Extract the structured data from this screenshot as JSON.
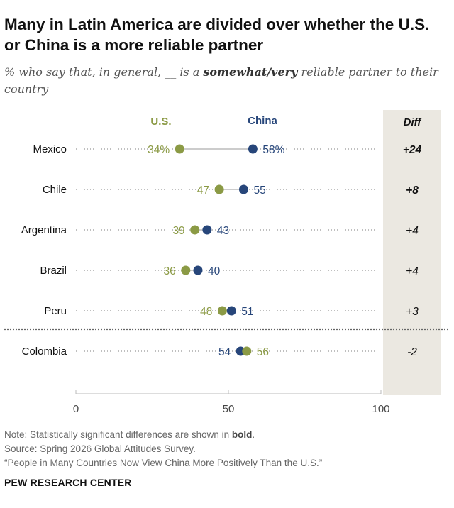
{
  "title": "Many in Latin America are divided over whether the U.S. or China is a more reliable partner",
  "subtitle": {
    "prefix": "% who say that, in general, __ is a ",
    "emphasis": "somewhat/very",
    "suffix": " reliable partner to their country"
  },
  "colors": {
    "us": "#8b9a45",
    "china": "#27467a",
    "diff_bg": "#ebe8e1",
    "dots_line": "#999999"
  },
  "chart_data": {
    "type": "dot",
    "categories": [
      "Mexico",
      "Chile",
      "Argentina",
      "Brazil",
      "Peru",
      "Colombia"
    ],
    "series": [
      {
        "name": "U.S.",
        "values": [
          34,
          47,
          39,
          36,
          48,
          56
        ],
        "labels": [
          "34%",
          "47",
          "39",
          "36",
          "48",
          "56"
        ]
      },
      {
        "name": "China",
        "values": [
          58,
          55,
          43,
          40,
          51,
          54
        ],
        "labels": [
          "58%",
          "55",
          "43",
          "40",
          "51",
          "54"
        ]
      }
    ],
    "diff": {
      "header": "Diff",
      "values": [
        "+24",
        "+8",
        "+4",
        "+4",
        "+3",
        "-2"
      ],
      "bold": [
        true,
        true,
        false,
        false,
        false,
        false
      ]
    },
    "x_ticks": [
      "0",
      "50",
      "100"
    ],
    "xlim": [
      0,
      100
    ]
  },
  "note_prefix": "Note: Statistically significant differences are shown in ",
  "note_bold": "bold",
  "note_suffix": ".",
  "source": "Source: Spring 2026 Global Attitudes Survey.",
  "report": "“People in Many Countries Now View China More Positively Than the U.S.”",
  "org": "PEW RESEARCH CENTER"
}
